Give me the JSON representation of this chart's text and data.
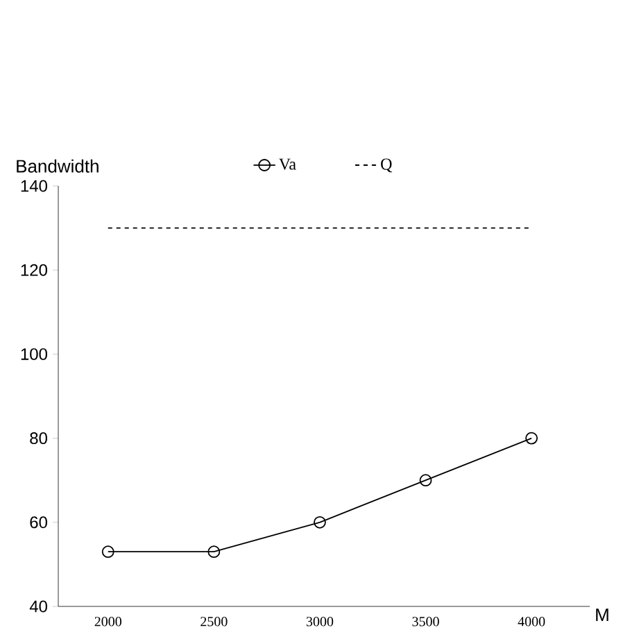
{
  "chart_data": {
    "type": "line",
    "ylabel": "Bandwidth",
    "xlabel": "M",
    "categories": [
      "2000",
      "2500",
      "3000",
      "3500",
      "4000"
    ],
    "series": [
      {
        "name": "Va",
        "color": "#000000",
        "values": [
          53,
          53,
          60,
          70,
          80
        ],
        "marker": "circle",
        "line_style": "solid"
      },
      {
        "name": "Q",
        "color": "#000000",
        "values": [
          130,
          130,
          130,
          130,
          130
        ],
        "marker": "none",
        "line_style": "dashed"
      }
    ],
    "ylim": [
      40,
      140
    ],
    "yticks": [
      40,
      60,
      80,
      100,
      120,
      140
    ],
    "grid": false,
    "legend": "top"
  }
}
